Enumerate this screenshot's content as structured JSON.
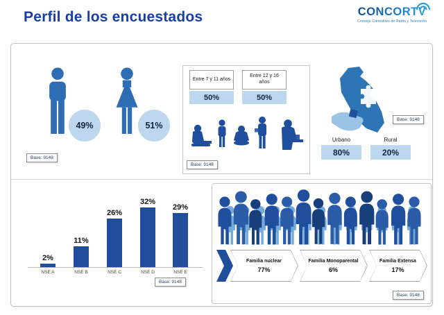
{
  "header": {
    "title": "Perfil de los encuestados",
    "logo": {
      "brand": "CONCORTV",
      "tagline": "Consejo Consultivo de Radio y Televisión"
    }
  },
  "gender": {
    "male_pct": "49%",
    "female_pct": "51%",
    "base": "Base: 9148"
  },
  "age": {
    "groups": [
      {
        "label": "Entre 7 y 11 años",
        "value": "50%"
      },
      {
        "label": "Entre 12 y 16 años",
        "value": "50%"
      }
    ],
    "base": "Base: 9148"
  },
  "area": {
    "items": [
      {
        "label": "Urbano",
        "value": "80%"
      },
      {
        "label": "Rural",
        "value": "20%"
      }
    ],
    "base": "Base: 9148"
  },
  "nse": {
    "categories": [
      "NSE A",
      "NSE B",
      "NSE C",
      "NSE D",
      "NSE E"
    ],
    "values": [
      2,
      11,
      26,
      32,
      29
    ],
    "labels": [
      "2%",
      "11%",
      "26%",
      "32%",
      "29%"
    ],
    "base": "Base: 9148"
  },
  "family": {
    "items": [
      {
        "label": "Familia nuclear",
        "value": "77%"
      },
      {
        "label": "Familia Monoparental",
        "value": "6%"
      },
      {
        "label": "Familia Extensa",
        "value": "17%"
      }
    ],
    "base": "Base: 9148"
  },
  "colors": {
    "primary_blue": "#1F4E9C",
    "icon_blue": "#2E6DB4",
    "light_blue_fill": "#BDD7EE",
    "title_blue": "#1B3EA5",
    "logo_blue": "#2FA9E1"
  },
  "chart_data": [
    {
      "type": "pie",
      "categories": [
        "male-icon",
        "female-icon"
      ],
      "values": [
        49,
        51
      ],
      "unit": "%",
      "annotation": "Base: 9148"
    },
    {
      "type": "bar",
      "categories": [
        "Entre 7 y 11 años",
        "Entre 12 y 16 años"
      ],
      "values": [
        50,
        50
      ],
      "unit": "%",
      "annotation": "Base: 9148"
    },
    {
      "type": "bar",
      "categories": [
        "Urbano",
        "Rural"
      ],
      "values": [
        80,
        20
      ],
      "unit": "%",
      "annotation": "Base: 9148"
    },
    {
      "type": "bar",
      "categories": [
        "NSE A",
        "NSE B",
        "NSE C",
        "NSE D",
        "NSE E"
      ],
      "values": [
        2,
        11,
        26,
        32,
        29
      ],
      "unit": "%",
      "ylim": [
        0,
        35
      ],
      "annotation": "Base: 9148",
      "legend": "none",
      "grid": false
    },
    {
      "type": "bar",
      "categories": [
        "Familia nuclear",
        "Familia Monoparental",
        "Familia Extensa"
      ],
      "values": [
        77,
        6,
        17
      ],
      "unit": "%",
      "annotation": "Base: 9148"
    }
  ]
}
